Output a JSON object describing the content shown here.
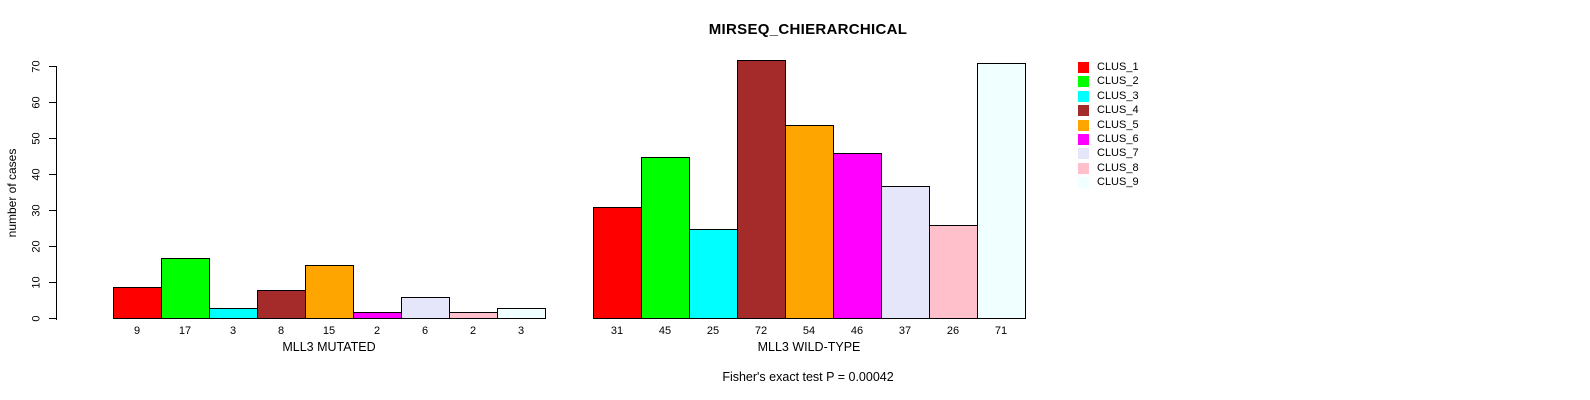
{
  "title": "MIRSEQ_CHIERARCHICAL",
  "footer": "Fisher's exact test P = 0.00042",
  "y_axis": {
    "label": "number of cases",
    "ticks": [
      0,
      10,
      20,
      30,
      40,
      50,
      60,
      70
    ]
  },
  "chart_data": {
    "type": "bar",
    "title": "MIRSEQ_CHIERARCHICAL",
    "ylabel": "number of cases",
    "ylim": [
      0,
      70
    ],
    "yticks": [
      0,
      10,
      20,
      30,
      40,
      50,
      60,
      70
    ],
    "grid": false,
    "legend_position": "right-outside",
    "annotation": "Fisher's exact test P = 0.00042",
    "legend": [
      {
        "label": "CLUS_1",
        "color": "#FF0000"
      },
      {
        "label": "CLUS_2",
        "color": "#00FF00"
      },
      {
        "label": "CLUS_3",
        "color": "#00FFFF"
      },
      {
        "label": "CLUS_4",
        "color": "#A52A2A"
      },
      {
        "label": "CLUS_5",
        "color": "#FFA500"
      },
      {
        "label": "CLUS_6",
        "color": "#FF00FF"
      },
      {
        "label": "CLUS_7",
        "color": "#E6E6FA"
      },
      {
        "label": "CLUS_8",
        "color": "#FFC0CB"
      },
      {
        "label": "CLUS_9",
        "color": "#F0FFFF"
      }
    ],
    "groups": [
      {
        "label": "MLL3 MUTATED",
        "values": [
          9,
          17,
          3,
          8,
          15,
          2,
          6,
          2,
          3
        ]
      },
      {
        "label": "MLL3 WILD-TYPE",
        "values": [
          31,
          45,
          25,
          72,
          54,
          46,
          37,
          26,
          71
        ]
      }
    ]
  }
}
